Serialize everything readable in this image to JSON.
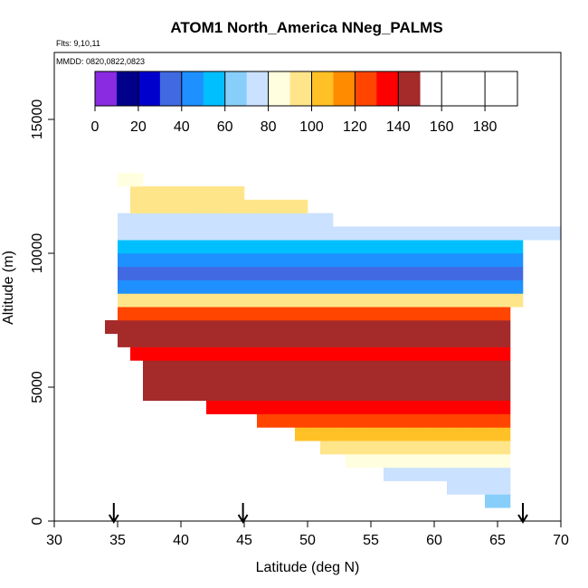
{
  "chart_data": {
    "type": "heatmap",
    "title": "ATOM1 North_America NNeg_PALMS",
    "annotations": [
      "Flts: 9,10,11",
      "MMDD: 0820,0822,0823"
    ],
    "xlabel": "Latitude (deg N)",
    "ylabel": "Altitude (m)",
    "xlim": [
      30,
      70
    ],
    "ylim": [
      0,
      17500
    ],
    "xticks": [
      30,
      35,
      40,
      45,
      50,
      55,
      60,
      65,
      70
    ],
    "yticks": [
      0,
      5000,
      10000,
      15000
    ],
    "cell_size": {
      "lat": 1,
      "alt": 500
    },
    "colorbar": {
      "range": [
        0,
        195
      ],
      "ticks": [
        0,
        20,
        40,
        60,
        80,
        100,
        120,
        140,
        160,
        180
      ],
      "colors": [
        "#8a2be2",
        "#00008b",
        "#0000cd",
        "#4169e1",
        "#1e90ff",
        "#00bfff",
        "#87cefa",
        "#cae1ff",
        "#ffffe0",
        "#ffe58a",
        "#ffc125",
        "#ff8c00",
        "#ff4500",
        "#ff0000",
        "#a52a2a"
      ],
      "bounds": [
        0,
        10,
        20,
        30,
        40,
        50,
        60,
        70,
        80,
        90,
        100,
        110,
        120,
        130,
        140,
        150,
        160,
        170,
        180,
        195
      ]
    },
    "arrows_at_lat": [
      34.7,
      44.9,
      67.0
    ],
    "rows": [
      {
        "alt": 750,
        "lat0": 64,
        "lat1": 66,
        "value": 60
      },
      {
        "alt": 1250,
        "lat0": 61,
        "lat1": 66,
        "value": 70
      },
      {
        "alt": 1750,
        "lat0": 56,
        "lat1": 66,
        "value": 75
      },
      {
        "alt": 2250,
        "lat0": 53,
        "lat1": 66,
        "value": 85
      },
      {
        "alt": 2750,
        "lat0": 51,
        "lat1": 66,
        "value": 95
      },
      {
        "alt": 3250,
        "lat0": 49,
        "lat1": 66,
        "value": 105
      },
      {
        "alt": 3750,
        "lat0": 46,
        "lat1": 66,
        "value": 120
      },
      {
        "alt": 4250,
        "lat0": 42,
        "lat1": 66,
        "value": 130
      },
      {
        "alt": 4750,
        "lat0": 37,
        "lat1": 66,
        "value": 150
      },
      {
        "alt": 5250,
        "lat0": 37,
        "lat1": 66,
        "value": 160
      },
      {
        "alt": 5750,
        "lat0": 37,
        "lat1": 66,
        "value": 145
      },
      {
        "alt": 6250,
        "lat0": 36,
        "lat1": 66,
        "value": 135
      },
      {
        "alt": 6750,
        "lat0": 35,
        "lat1": 66,
        "value": 160
      },
      {
        "alt": 7250,
        "lat0": 34,
        "lat1": 66,
        "value": 140
      },
      {
        "alt": 7750,
        "lat0": 35,
        "lat1": 66,
        "value": 120
      },
      {
        "alt": 8250,
        "lat0": 35,
        "lat1": 67,
        "value": 95
      },
      {
        "alt": 8750,
        "lat0": 35,
        "lat1": 67,
        "value": 40
      },
      {
        "alt": 9250,
        "lat0": 35,
        "lat1": 67,
        "value": 30
      },
      {
        "alt": 9750,
        "lat0": 35,
        "lat1": 67,
        "value": 45
      },
      {
        "alt": 10250,
        "lat0": 35,
        "lat1": 67,
        "value": 55
      },
      {
        "alt": 10750,
        "lat0": 35,
        "lat1": 70,
        "value": 70
      },
      {
        "alt": 11250,
        "lat0": 35,
        "lat1": 52,
        "value": 75
      },
      {
        "alt": 11750,
        "lat0": 36,
        "lat1": 50,
        "value": 90
      },
      {
        "alt": 12250,
        "lat0": 36,
        "lat1": 45,
        "value": 95
      },
      {
        "alt": 12750,
        "lat0": 35,
        "lat1": 37,
        "value": 80
      }
    ]
  }
}
